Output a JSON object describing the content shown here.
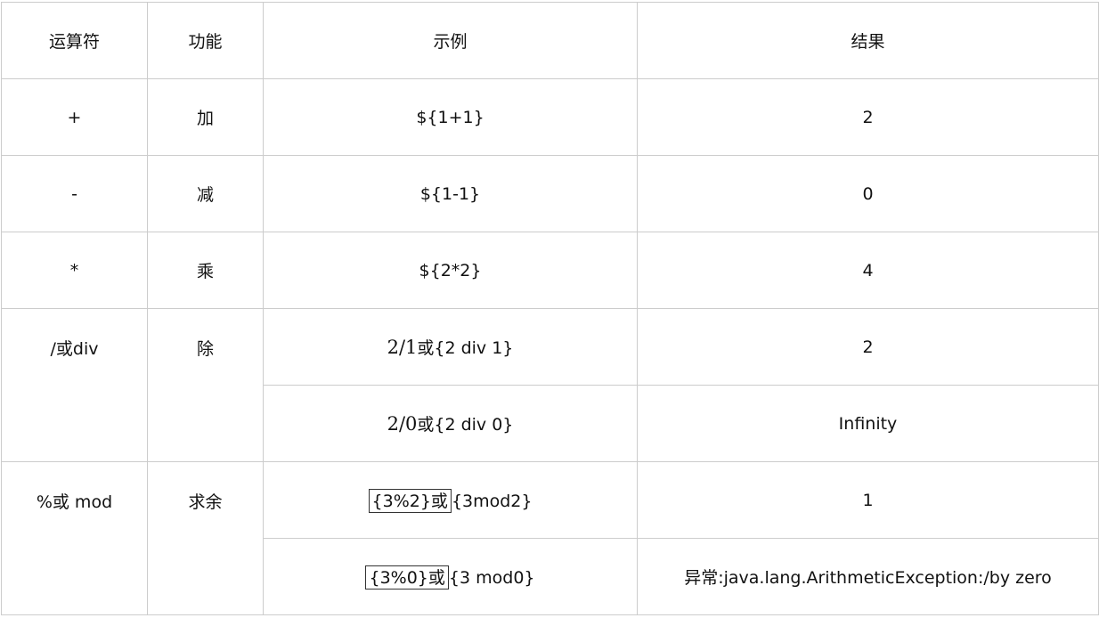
{
  "headers": {
    "operator": "运算符",
    "function": "功能",
    "example": "示例",
    "result": "结果"
  },
  "rows": [
    {
      "op": "+",
      "func": "加",
      "example": "${1+1}",
      "result": "2"
    },
    {
      "op": "-",
      "func": "减",
      "example": "${1-1}",
      "result": "0"
    },
    {
      "op": "*",
      "func": "乘",
      "example": "${2*2}",
      "result": "4"
    }
  ],
  "division": {
    "op": "/或div",
    "func": "除",
    "examples": [
      {
        "math": "2/1",
        "text": "或{2 div 1}",
        "result": "2"
      },
      {
        "math": "2/0",
        "text": "或{2 div 0}",
        "result": "Infinity"
      }
    ]
  },
  "modulo": {
    "op": "%或 mod",
    "func": "求余",
    "examples": [
      {
        "boxed": "{3%2}或",
        "text": "{3mod2}",
        "result": "1"
      },
      {
        "boxed": "{3%0}或",
        "text": "{3 mod0}",
        "result": "异常:java.lang.ArithmeticException:/by zero"
      }
    ]
  }
}
